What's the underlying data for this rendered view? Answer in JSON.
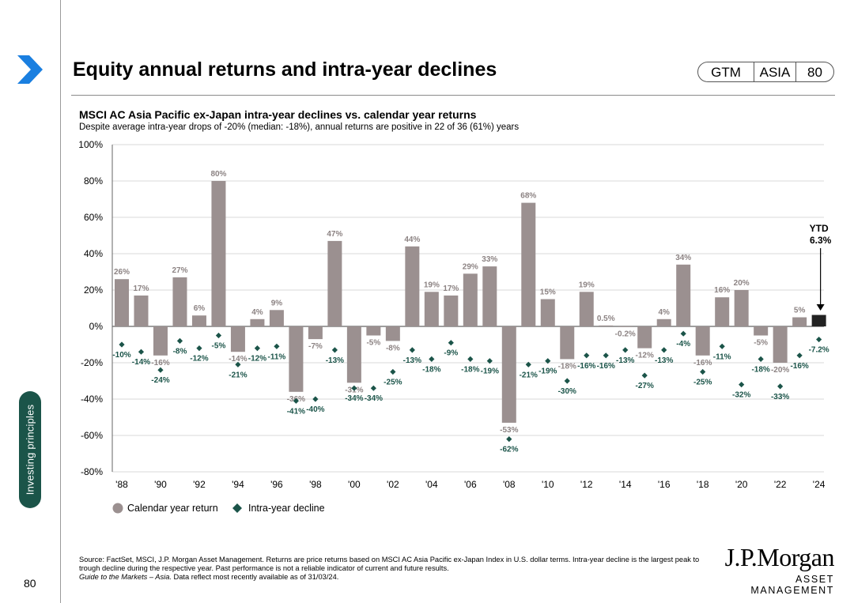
{
  "header": {
    "title": "Equity annual returns and intra-year declines",
    "badge": [
      "GTM",
      "ASIA",
      "80"
    ]
  },
  "sidebar": {
    "section_label": "Investing principles",
    "page_number": "80"
  },
  "chart_header": {
    "subtitle": "MSCI AC Asia Pacific ex-Japan intra-year declines vs. calendar year returns",
    "caption": "Despite average intra-year drops of -20% (median: -18%), annual returns are positive in 22 of 36 (61%) years"
  },
  "chart_data": {
    "type": "bar",
    "years": [
      1988,
      1989,
      1990,
      1991,
      1992,
      1993,
      1994,
      1995,
      1996,
      1997,
      1998,
      1999,
      2000,
      2001,
      2002,
      2003,
      2004,
      2005,
      2006,
      2007,
      2008,
      2009,
      2010,
      2011,
      2012,
      2013,
      2014,
      2015,
      2016,
      2017,
      2018,
      2019,
      2020,
      2021,
      2022,
      2023,
      2024
    ],
    "x_tick_labels": [
      "'88",
      "'90",
      "'92",
      "'94",
      "'96",
      "'98",
      "'00",
      "'02",
      "'04",
      "'06",
      "'08",
      "'10",
      "'12",
      "'14",
      "'16",
      "'18",
      "'20",
      "'22",
      "'24"
    ],
    "series": [
      {
        "name": "Calendar year return",
        "color": "#9b9090",
        "values": [
          26,
          17,
          -16,
          27,
          6,
          80,
          -14,
          4,
          9,
          -36,
          -7,
          47,
          -31,
          -5,
          -8,
          44,
          19,
          17,
          29,
          33,
          -53,
          68,
          15,
          -18,
          19,
          0.5,
          -0.2,
          -12,
          4,
          34,
          -16,
          16,
          20,
          -5,
          -20,
          5,
          6.3
        ],
        "labels": [
          "26%",
          "17%",
          "-16%",
          "27%",
          "6%",
          "80%",
          "-14%",
          "4%",
          "9%",
          "-36%",
          "-7%",
          "47%",
          "-31%",
          "-5%",
          "-8%",
          "44%",
          "19%",
          "17%",
          "29%",
          "33%",
          "-53%",
          "68%",
          "15%",
          "-18%",
          "19%",
          "0.5%",
          "-0.2%",
          "-12%",
          "4%",
          "34%",
          "-16%",
          "16%",
          "20%",
          "-5%",
          "-20%",
          "5%",
          ""
        ]
      },
      {
        "name": "Intra-year decline",
        "color": "#1b5449",
        "values": [
          -10,
          -14,
          -24,
          -8,
          -12,
          -5,
          -21,
          -12,
          -11,
          -41,
          -40,
          -13,
          -34,
          -34,
          -25,
          -13,
          -18,
          -9,
          -18,
          -19,
          -62,
          -21,
          -19,
          -30,
          -16,
          -16,
          -13,
          -27,
          -13,
          -4,
          -25,
          -11,
          -32,
          -18,
          -33,
          -16,
          -7.2
        ],
        "labels": [
          "-10%",
          "-14%",
          "-24%",
          "-8%",
          "-12%",
          "-5%",
          "-21%",
          "-12%",
          "-11%",
          "-41%",
          "-40%",
          "-13%",
          "-34%",
          "-34%",
          "-25%",
          "-13%",
          "-18%",
          "-9%",
          "-18%",
          "-19%",
          "-62%",
          "-21%",
          "-19%",
          "-30%",
          "-16%",
          "-16%",
          "-13%",
          "-27%",
          "-13%",
          "-4%",
          "-25%",
          "-11%",
          "-32%",
          "-18%",
          "-33%",
          "-16%",
          "-7.2%"
        ]
      }
    ],
    "ytd": {
      "label": "YTD",
      "value_label": "6.3%",
      "color": "#222222"
    },
    "y_tick_labels": [
      "100%",
      "80%",
      "60%",
      "40%",
      "20%",
      "0%",
      "-20%",
      "-40%",
      "-60%",
      "-80%"
    ],
    "ylim": [
      -80,
      100
    ],
    "legend": [
      "Calendar year return",
      "Intra-year decline"
    ],
    "grid": true
  },
  "footer": {
    "source": "Source: FactSet, MSCI, J.P. Morgan Asset Management. Returns are price returns based on MSCI AC Asia Pacific ex-Japan Index in U.S. dollar terms. Intra-year decline is the largest peak to trough decline during the respective year. Past performance is not a reliable indicator of current and future results.",
    "guide_italic": "Guide to the Markets – Asia.",
    "guide_rest": " Data reflect most recently available as of 31/03/24."
  },
  "logo": {
    "line1": "J.P.Morgan",
    "line2": "ASSET MANAGEMENT"
  }
}
